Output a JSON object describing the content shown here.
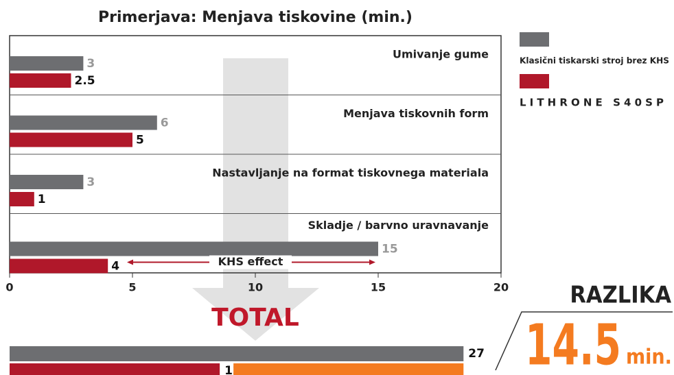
{
  "chart_data": {
    "type": "bar",
    "orientation": "horizontal",
    "title": "Primerjava: Menjava tiskovine (min.)",
    "categories": [
      "Umivanje gume",
      "Menjava tiskovnih form",
      "Nastavljanje na format tiskovnega materiala",
      "Skladje / barvno uravnavanje"
    ],
    "series": [
      {
        "name": "Klasični tiskarski stroj brez KHS",
        "color": "#6d6e71",
        "values": [
          3,
          6,
          3,
          15
        ]
      },
      {
        "name": "LITHRONE S40SP",
        "color": "#b0182a",
        "values": [
          2.5,
          5,
          1,
          4
        ]
      }
    ],
    "xlim": [
      0,
      20
    ],
    "xticks": [
      0,
      5,
      10,
      15,
      20
    ],
    "annotation": "KHS effect",
    "total": {
      "label": "TOTAL",
      "values": [
        27,
        12.5
      ],
      "xlim": [
        0,
        27.6
      ],
      "difference_label": "RAZLIKA",
      "difference": 14.5,
      "difference_color": "#f47b20",
      "unit": "min."
    }
  }
}
